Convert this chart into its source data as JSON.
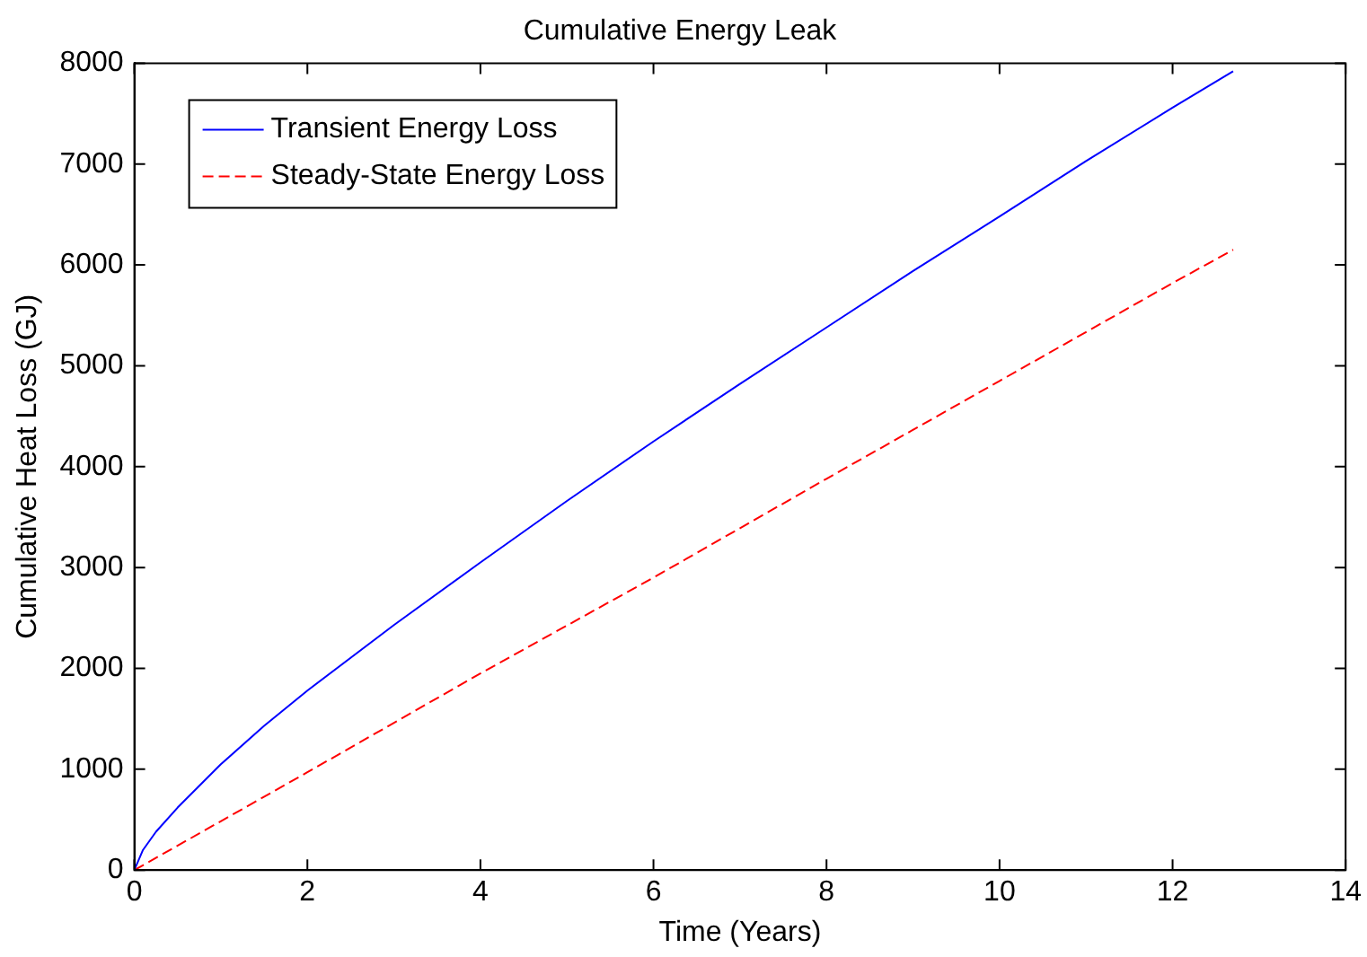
{
  "chart_data": {
    "type": "line",
    "title": "Cumulative Energy Leak",
    "xlabel": "Time (Years)",
    "ylabel": "Cumulative Heat Loss (GJ)",
    "xlim": [
      0,
      14
    ],
    "xticks": [
      0,
      2,
      4,
      6,
      8,
      10,
      12,
      14
    ],
    "ylim": [
      0,
      8000
    ],
    "yticks": [
      0,
      1000,
      2000,
      3000,
      4000,
      5000,
      6000,
      7000,
      8000
    ],
    "grid": false,
    "legend": "top left",
    "marker": "none",
    "series": [
      {
        "name": "Transient Energy Loss",
        "color": "#0000ff",
        "line_style": "solid",
        "x": [
          0,
          0.1,
          0.25,
          0.5,
          1,
          1.5,
          2,
          3,
          4,
          5,
          6,
          7,
          8,
          9,
          10,
          11,
          12,
          12.7
        ],
        "values": [
          0,
          200,
          380,
          620,
          1050,
          1430,
          1780,
          2430,
          3050,
          3660,
          4250,
          4820,
          5380,
          5940,
          6480,
          7030,
          7560,
          7920
        ]
      },
      {
        "name": "Steady-State Energy Loss",
        "color": "#ff0000",
        "line_style": "dashed",
        "x": [
          0,
          2,
          4,
          6,
          8,
          10,
          12,
          12.7
        ],
        "values": [
          0,
          970,
          1950,
          2900,
          3880,
          4850,
          5820,
          6150
        ]
      }
    ]
  }
}
